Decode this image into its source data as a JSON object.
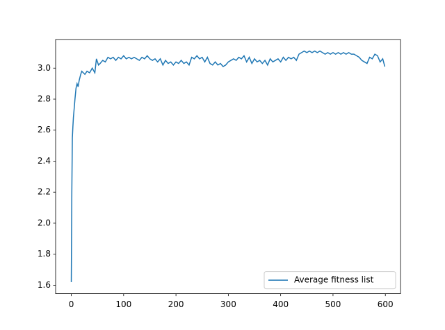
{
  "chart_data": {
    "type": "line",
    "x": [
      0,
      1,
      2,
      3,
      4,
      5,
      7,
      9,
      11,
      13,
      15,
      18,
      20,
      23,
      26,
      30,
      35,
      40,
      45,
      48,
      52,
      55,
      60,
      65,
      70,
      75,
      80,
      85,
      90,
      95,
      100,
      105,
      110,
      115,
      120,
      125,
      130,
      135,
      140,
      145,
      150,
      155,
      160,
      165,
      170,
      175,
      180,
      185,
      190,
      195,
      200,
      205,
      210,
      215,
      220,
      225,
      230,
      235,
      240,
      245,
      250,
      255,
      260,
      265,
      270,
      275,
      280,
      285,
      290,
      295,
      300,
      305,
      310,
      315,
      320,
      325,
      330,
      335,
      340,
      345,
      350,
      355,
      360,
      365,
      370,
      375,
      380,
      385,
      390,
      395,
      400,
      405,
      410,
      415,
      420,
      425,
      430,
      435,
      440,
      445,
      450,
      455,
      460,
      465,
      470,
      475,
      480,
      485,
      490,
      495,
      500,
      505,
      510,
      515,
      520,
      525,
      530,
      535,
      540,
      545,
      550,
      555,
      560,
      565,
      570,
      575,
      580,
      585,
      590,
      595,
      599
    ],
    "series": [
      {
        "name": "Average fitness list",
        "color": "#1f77b4",
        "values": [
          1.62,
          2.2,
          2.55,
          2.62,
          2.68,
          2.72,
          2.8,
          2.87,
          2.9,
          2.88,
          2.92,
          2.96,
          2.98,
          2.97,
          2.96,
          2.98,
          2.97,
          3.0,
          2.97,
          3.06,
          3.02,
          3.03,
          3.05,
          3.04,
          3.07,
          3.06,
          3.07,
          3.05,
          3.07,
          3.06,
          3.08,
          3.06,
          3.07,
          3.06,
          3.07,
          3.06,
          3.05,
          3.07,
          3.06,
          3.08,
          3.06,
          3.05,
          3.06,
          3.04,
          3.06,
          3.02,
          3.05,
          3.03,
          3.04,
          3.02,
          3.04,
          3.03,
          3.05,
          3.03,
          3.04,
          3.02,
          3.07,
          3.06,
          3.08,
          3.06,
          3.07,
          3.04,
          3.07,
          3.03,
          3.02,
          3.04,
          3.02,
          3.03,
          3.01,
          3.02,
          3.04,
          3.05,
          3.06,
          3.05,
          3.07,
          3.06,
          3.08,
          3.04,
          3.07,
          3.03,
          3.06,
          3.04,
          3.05,
          3.03,
          3.05,
          3.02,
          3.06,
          3.04,
          3.05,
          3.06,
          3.04,
          3.07,
          3.05,
          3.07,
          3.06,
          3.07,
          3.05,
          3.09,
          3.1,
          3.11,
          3.1,
          3.11,
          3.1,
          3.11,
          3.1,
          3.11,
          3.1,
          3.09,
          3.1,
          3.09,
          3.1,
          3.09,
          3.1,
          3.09,
          3.1,
          3.09,
          3.1,
          3.09,
          3.09,
          3.08,
          3.07,
          3.05,
          3.04,
          3.03,
          3.07,
          3.06,
          3.09,
          3.08,
          3.04,
          3.06,
          3.01
        ]
      }
    ],
    "xlim": [
      -29.95,
      628.95
    ],
    "ylim": [
      1.5455,
      3.1845
    ],
    "xticks": [
      0,
      100,
      200,
      300,
      400,
      500,
      600
    ],
    "yticks": [
      1.6,
      1.8,
      {
        "value": 2,
        "label": "2.0"
      },
      2.2,
      2.4,
      2.6,
      2.8,
      {
        "value": 3,
        "label": "3.0"
      }
    ],
    "legend": "lower right"
  }
}
